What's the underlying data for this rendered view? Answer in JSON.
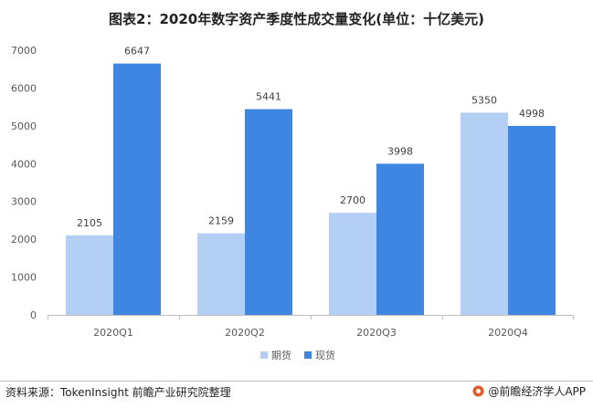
{
  "title": "图表2：2020年数字资产季度性成交量变化(单位：十亿美元)",
  "source": "资料来源：TokenInsight 前瞻产业研究院整理",
  "brand": "@前瞻经济学人APP",
  "colors": {
    "futures": "#b4cff4",
    "spot": "#3f86e3"
  },
  "chart_data": {
    "type": "bar",
    "categories": [
      "2020Q1",
      "2020Q2",
      "2020Q3",
      "2020Q4"
    ],
    "series": [
      {
        "name": "期货",
        "values": [
          2105,
          2159,
          2700,
          5350
        ]
      },
      {
        "name": "现货",
        "values": [
          6647,
          5441,
          3998,
          4998
        ]
      }
    ],
    "ylim": [
      0,
      7000
    ],
    "yticks": [
      0,
      1000,
      2000,
      3000,
      4000,
      5000,
      6000,
      7000
    ],
    "legend": "bottom",
    "grid": false
  }
}
